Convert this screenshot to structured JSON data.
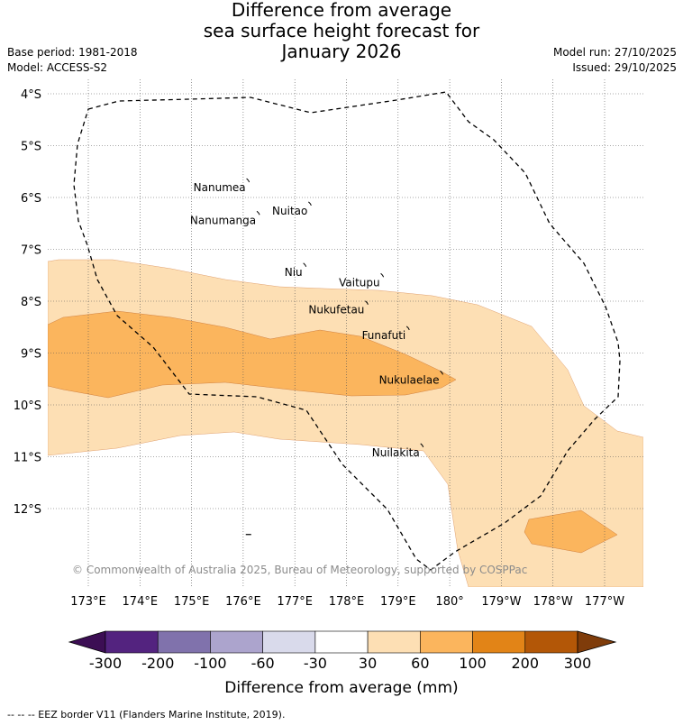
{
  "title": {
    "line1": "Difference from average",
    "line2": "sea surface height forecast for",
    "line3": "January 2026"
  },
  "meta_left": {
    "base_period": "Base period: 1981-2018",
    "model": "Model: ACCESS-S2"
  },
  "meta_right": {
    "model_run": "Model run: 27/10/2025",
    "issued": "Issued: 29/10/2025"
  },
  "map": {
    "lat_ticks": [
      {
        "lat": -4,
        "label": "4°S"
      },
      {
        "lat": -5,
        "label": "5°S"
      },
      {
        "lat": -6,
        "label": "6°S"
      },
      {
        "lat": -7,
        "label": "7°S"
      },
      {
        "lat": -8,
        "label": "8°S"
      },
      {
        "lat": -9,
        "label": "9°S"
      },
      {
        "lat": -10,
        "label": "10°S"
      },
      {
        "lat": -11,
        "label": "11°S"
      },
      {
        "lat": -12,
        "label": "12°S"
      }
    ],
    "lon_ticks": [
      {
        "lon": 173,
        "label": "173°E"
      },
      {
        "lon": 174,
        "label": "174°E"
      },
      {
        "lon": 175,
        "label": "175°E"
      },
      {
        "lon": 176,
        "label": "176°E"
      },
      {
        "lon": 177,
        "label": "177°E"
      },
      {
        "lon": 178,
        "label": "178°E"
      },
      {
        "lon": 179,
        "label": "179°E"
      },
      {
        "lon": 180,
        "label": "180°"
      },
      {
        "lon": 181,
        "label": "179°W"
      },
      {
        "lon": 182,
        "label": "178°W"
      },
      {
        "lon": 183,
        "label": "177°W"
      }
    ],
    "lon_range": [
      172.2,
      183.7
    ],
    "lat_range": [
      -13.5,
      -3.8
    ],
    "islands": [
      {
        "name": "Nanumea",
        "lon": 176.1,
        "lat": -5.67
      },
      {
        "name": "Nuitao",
        "lon": 177.3,
        "lat": -6.12
      },
      {
        "name": "Nanumanga",
        "lon": 176.3,
        "lat": -6.3
      },
      {
        "name": "Niu",
        "lon": 177.2,
        "lat": -7.3
      },
      {
        "name": "Vaitupu",
        "lon": 178.7,
        "lat": -7.5
      },
      {
        "name": "Nukufetau",
        "lon": 178.4,
        "lat": -8.03
      },
      {
        "name": "Funafuti",
        "lon": 179.2,
        "lat": -8.52
      },
      {
        "name": "Nukulaelae",
        "lon": 179.85,
        "lat": -9.38
      },
      {
        "name": "Nuilakita",
        "lon": 179.47,
        "lat": -10.78
      }
    ],
    "copyright": "© Commonwealth of Australia 2025, Bureau of Meteorology, supported by COSPPac",
    "colors": {
      "band_30_60": "#fddfb4",
      "band_60_100": "#fbb55d",
      "eez_line": "#000000"
    }
  },
  "colorbar": {
    "label": "Difference from average (mm)",
    "ticks": [
      "-300",
      "-200",
      "-100",
      "-60",
      "-30",
      "30",
      "60",
      "100",
      "200",
      "300"
    ],
    "colors": [
      "#53237f",
      "#8072ac",
      "#aca4cd",
      "#d9daeb",
      "#ffffff",
      "#fddfb4",
      "#fbb55d",
      "#e28417",
      "#b35707"
    ],
    "under_color": "#3c0e54",
    "over_color": "#7f3c0a"
  },
  "footnote": "--  --  -- EEZ border V11 (Flanders Marine Institute, 2019)."
}
